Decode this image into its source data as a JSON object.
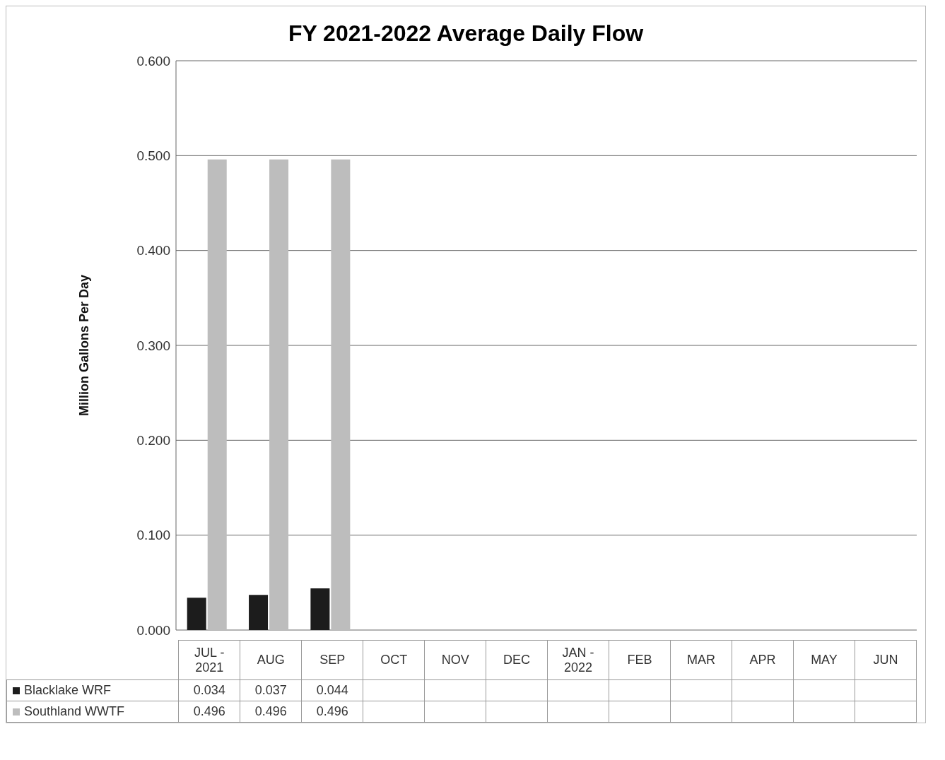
{
  "chart_data": {
    "type": "bar",
    "title": "FY 2021-2022 Average Daily Flow",
    "ylabel": "Million Gallons Per Day",
    "categories": [
      "JUL - 2021",
      "AUG",
      "SEP",
      "OCT",
      "NOV",
      "DEC",
      "JAN - 2022",
      "FEB",
      "MAR",
      "APR",
      "MAY",
      "JUN"
    ],
    "series": [
      {
        "name": "Blacklake WRF",
        "color": "#1c1c1c",
        "values": [
          0.034,
          0.037,
          0.044,
          null,
          null,
          null,
          null,
          null,
          null,
          null,
          null,
          null
        ]
      },
      {
        "name": "Southland WWTF",
        "color": "#bdbdbd",
        "values": [
          0.496,
          0.496,
          0.496,
          null,
          null,
          null,
          null,
          null,
          null,
          null,
          null,
          null
        ]
      }
    ],
    "ylim": [
      0,
      0.6
    ],
    "yticks": [
      {
        "value": 0,
        "label": "0.000"
      },
      {
        "value": 0.1,
        "label": "0.100"
      },
      {
        "value": 0.2,
        "label": "0.200"
      },
      {
        "value": 0.3,
        "label": "0.300"
      },
      {
        "value": 0.4,
        "label": "0.400"
      },
      {
        "value": 0.5,
        "label": "0.500"
      },
      {
        "value": 0.6,
        "label": "0.600"
      }
    ],
    "grid": "y",
    "legend": "bottom",
    "data_labels": true
  }
}
